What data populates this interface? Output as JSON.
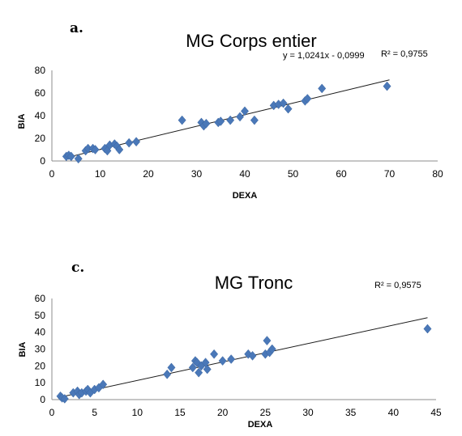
{
  "chart_data": [
    {
      "type": "scatter",
      "panel_label": "a.",
      "title": "MG Corps entier",
      "equation": "y = 1,0241x - 0,0999",
      "r_squared": "R² = 0,9755",
      "xlabel": "DEXA",
      "ylabel": "BIA",
      "xlim": [
        0,
        80
      ],
      "ylim": [
        0,
        80
      ],
      "xticks": [
        "0",
        "10",
        "20",
        "30",
        "40",
        "50",
        "60",
        "70",
        "80"
      ],
      "yticks": [
        "0",
        "20",
        "40",
        "60",
        "80"
      ],
      "trendline": {
        "x": [
          3,
          70
        ],
        "y": [
          3,
          71.6
        ]
      },
      "points": [
        [
          3,
          4
        ],
        [
          3.5,
          5
        ],
        [
          4,
          4
        ],
        [
          5.5,
          2
        ],
        [
          7,
          9
        ],
        [
          7.5,
          11
        ],
        [
          8.5,
          11
        ],
        [
          9,
          10
        ],
        [
          11,
          11
        ],
        [
          11.5,
          9
        ],
        [
          12,
          14
        ],
        [
          13,
          15
        ],
        [
          13.5,
          13
        ],
        [
          14,
          10
        ],
        [
          16,
          16
        ],
        [
          17.5,
          17
        ],
        [
          27,
          36
        ],
        [
          31,
          34
        ],
        [
          31.5,
          31
        ],
        [
          32,
          33
        ],
        [
          34.5,
          34
        ],
        [
          35,
          35
        ],
        [
          37,
          36
        ],
        [
          39,
          39
        ],
        [
          40,
          44
        ],
        [
          42,
          36
        ],
        [
          46,
          49
        ],
        [
          47,
          50
        ],
        [
          48,
          51
        ],
        [
          49,
          46
        ],
        [
          52.5,
          53
        ],
        [
          53,
          55
        ],
        [
          56,
          64
        ],
        [
          69.5,
          66
        ]
      ]
    },
    {
      "type": "scatter",
      "panel_label": "c.",
      "title": "MG Tronc",
      "r_squared": "R² = 0,9575",
      "xlabel": "DEXA",
      "ylabel": "BIA",
      "xlim": [
        0,
        45
      ],
      "ylim": [
        0,
        60
      ],
      "xticks": [
        "0",
        "5",
        "10",
        "15",
        "20",
        "25",
        "30",
        "35",
        "40",
        "45"
      ],
      "yticks": [
        "0",
        "10",
        "20",
        "30",
        "40",
        "50",
        "60"
      ],
      "trendline": {
        "x": [
          1,
          44
        ],
        "y": [
          1.5,
          48.6
        ]
      },
      "points": [
        [
          1,
          2
        ],
        [
          1.2,
          1
        ],
        [
          1.5,
          0.5
        ],
        [
          2.5,
          4
        ],
        [
          3,
          5
        ],
        [
          3.2,
          3
        ],
        [
          3.5,
          4
        ],
        [
          4,
          5
        ],
        [
          4.2,
          6
        ],
        [
          4.5,
          4
        ],
        [
          5,
          6
        ],
        [
          5.5,
          7
        ],
        [
          6,
          9
        ],
        [
          13.5,
          15
        ],
        [
          14,
          19
        ],
        [
          16.5,
          19
        ],
        [
          16.8,
          23
        ],
        [
          17,
          22
        ],
        [
          17.2,
          16
        ],
        [
          17.5,
          20
        ],
        [
          18,
          22
        ],
        [
          18.2,
          18
        ],
        [
          19,
          27
        ],
        [
          20,
          23
        ],
        [
          21,
          24
        ],
        [
          23,
          27
        ],
        [
          23.5,
          26
        ],
        [
          25,
          27
        ],
        [
          25.2,
          35
        ],
        [
          25.5,
          28
        ],
        [
          25.8,
          30
        ],
        [
          44,
          42
        ]
      ]
    }
  ]
}
